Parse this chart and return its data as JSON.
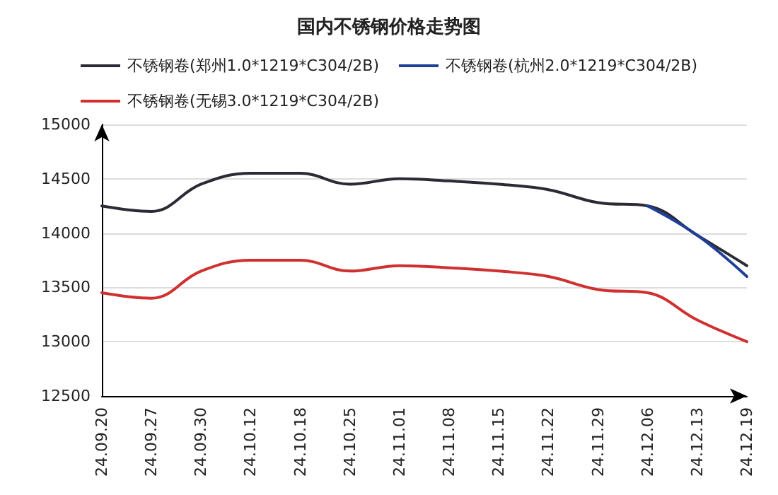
{
  "chart_data": {
    "type": "line",
    "title": "国内不锈钢价格走势图",
    "categories": [
      "24.09.20",
      "24.09.27",
      "24.09.30",
      "24.10.12",
      "24.10.18",
      "24.10.25",
      "24.11.01",
      "24.11.08",
      "24.11.15",
      "24.11.22",
      "24.11.29",
      "24.12.06",
      "24.12.13",
      "24.12.19"
    ],
    "series": [
      {
        "name": "不锈钢卷(郑州1.0*1219*C304/2B)",
        "color": "#2b2b36",
        "values": [
          14250,
          14200,
          14450,
          14550,
          14550,
          14450,
          14500,
          14480,
          14450,
          14400,
          14280,
          14250,
          13980,
          13700
        ]
      },
      {
        "name": "不锈钢卷(杭州2.0*1219*C304/2B)",
        "color": "#1f3f99",
        "values": [
          null,
          null,
          null,
          null,
          null,
          null,
          null,
          null,
          null,
          null,
          null,
          14250,
          13980,
          13600
        ]
      },
      {
        "name": "不锈钢卷(无锡3.0*1219*C304/2B)",
        "color": "#d03030",
        "values": [
          13450,
          13400,
          13650,
          13750,
          13750,
          13650,
          13700,
          13680,
          13650,
          13600,
          13480,
          13450,
          13200,
          13000
        ]
      }
    ],
    "ylim": [
      12500,
      15000
    ],
    "yticks": [
      12500,
      13000,
      13500,
      14000,
      14500,
      15000
    ],
    "grid": "y",
    "legend": "top",
    "marker": "none",
    "line_style": "solid"
  }
}
